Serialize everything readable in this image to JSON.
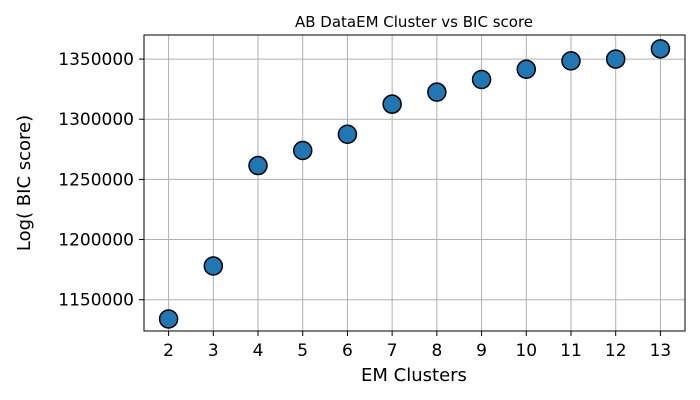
{
  "chart_data": {
    "type": "scatter",
    "title": "AB DataEM Cluster vs BIC score",
    "xlabel": "EM Clusters",
    "ylabel": "Log( BIC score)",
    "x": [
      2,
      3,
      4,
      5,
      6,
      7,
      8,
      9,
      10,
      11,
      12,
      13
    ],
    "y": [
      1134000,
      1178000,
      1261500,
      1274000,
      1287500,
      1312500,
      1322500,
      1333000,
      1341500,
      1348500,
      1350000,
      1358500
    ],
    "xticks": [
      2,
      3,
      4,
      5,
      6,
      7,
      8,
      9,
      10,
      11,
      12,
      13
    ],
    "yticks": [
      1150000,
      1200000,
      1250000,
      1300000,
      1350000
    ],
    "xlim": [
      1.45,
      13.55
    ],
    "ylim": [
      1124000,
      1370000
    ],
    "grid": true,
    "marker_color": "#1f77b4",
    "marker_edge_color": "#000000",
    "grid_color": "#b0b0b0"
  }
}
